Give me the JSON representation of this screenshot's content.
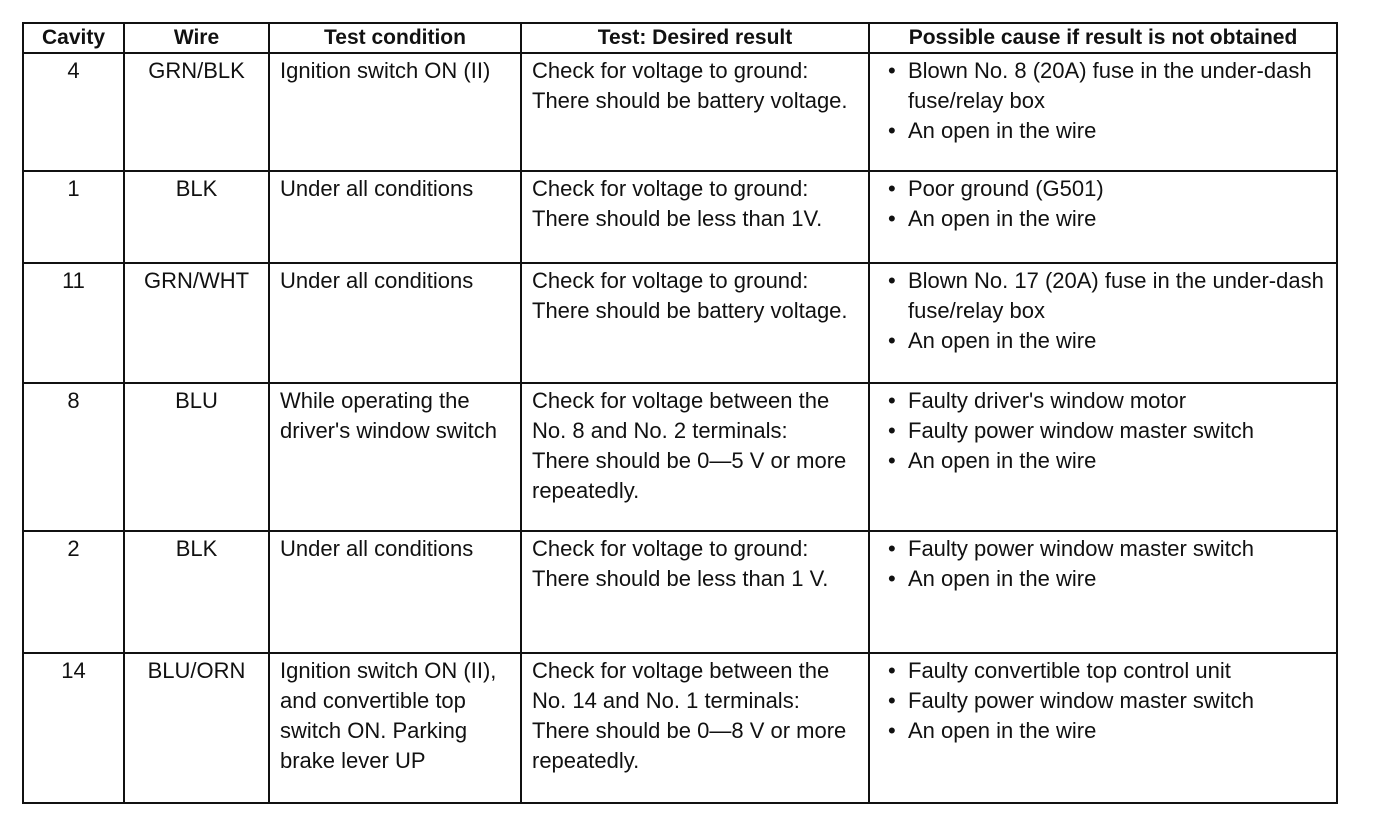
{
  "headers": [
    "Cavity",
    "Wire",
    "Test condition",
    "Test: Desired result",
    "Possible cause if result is not obtained"
  ],
  "rows": [
    {
      "cavity": "4",
      "wire": "GRN/BLK",
      "condition": "Ignition switch ON (II)",
      "result": [
        "Check for voltage to ground:",
        "There should be battery voltage."
      ],
      "causes": [
        "Blown No. 8 (20A) fuse in the under-dash fuse/relay box",
        "An open in the wire"
      ]
    },
    {
      "cavity": "1",
      "wire": "BLK",
      "condition": "Under all conditions",
      "result": [
        "Check for voltage to ground:",
        "There should be less than 1V."
      ],
      "causes": [
        "Poor ground (G501)",
        "An open in the wire"
      ]
    },
    {
      "cavity": "11",
      "wire": "GRN/WHT",
      "condition": "Under all conditions",
      "result": [
        "Check for voltage to ground:",
        "There should be battery voltage."
      ],
      "causes": [
        "Blown No. 17 (20A) fuse in the under-dash fuse/relay box",
        "An open in the wire"
      ]
    },
    {
      "cavity": "8",
      "wire": "BLU",
      "condition": "While operating the driver's window switch",
      "result": [
        "Check for voltage between the No. 8 and No. 2 terminals:",
        "There should be 0—5 V or more repeatedly."
      ],
      "causes": [
        "Faulty driver's window motor",
        "Faulty power window master switch",
        "An open in the wire"
      ]
    },
    {
      "cavity": "2",
      "wire": "BLK",
      "condition": "Under all conditions",
      "result": [
        "Check for voltage to ground:",
        "There should be less than 1 V."
      ],
      "causes": [
        "Faulty power window master switch",
        "An open in the wire"
      ]
    },
    {
      "cavity": "14",
      "wire": "BLU/ORN",
      "condition": "Ignition switch ON (II), and convertible top switch ON. Parking brake lever UP",
      "result": [
        "Check for voltage between the No. 14 and No. 1 terminals:",
        "There should be 0—8 V or more repeatedly."
      ],
      "causes": [
        "Faulty convertible top control unit",
        "Faulty power window master switch",
        "An open in the wire"
      ]
    }
  ]
}
